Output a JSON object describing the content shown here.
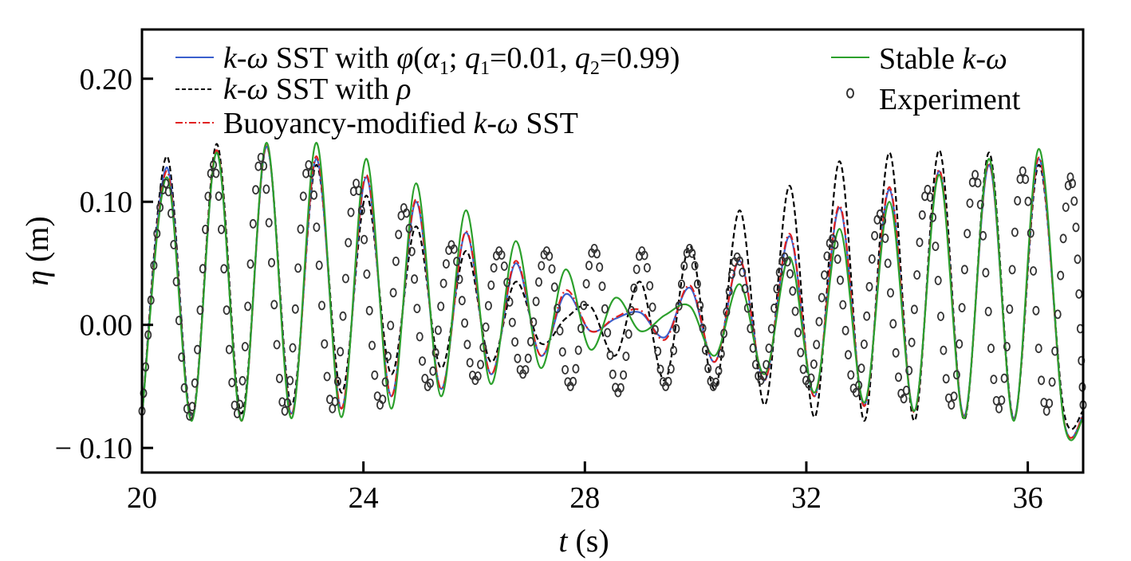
{
  "chart_data": {
    "type": "line",
    "title": "",
    "xlabel": "t (s)",
    "ylabel": "η (m)",
    "xlabel_parts": {
      "sym": "t",
      "unit": "(s)"
    },
    "ylabel_parts": {
      "sym": "η",
      "unit": "(m)"
    },
    "xlim": [
      20,
      37
    ],
    "ylim": [
      -0.12,
      0.24
    ],
    "x_ticks": [
      20,
      24,
      28,
      32,
      36
    ],
    "x_tick_labels": [
      "20",
      "24",
      "28",
      "32",
      "36"
    ],
    "y_ticks": [
      -0.1,
      0.0,
      0.1,
      0.2
    ],
    "y_tick_labels": [
      "− 0.10",
      "0.00",
      "0.10",
      "0.20"
    ],
    "grid": false,
    "legend_position": "top",
    "series": [
      {
        "name": "k-ω SST with φ(α1; q1=0.01, q2=0.99)",
        "style": "solid",
        "color": "#3a5fcd",
        "x": [
          20.0,
          20.45,
          20.9,
          21.35,
          21.8,
          22.25,
          22.7,
          23.15,
          23.6,
          24.05,
          24.5,
          24.95,
          25.4,
          25.85,
          26.3,
          26.75,
          27.2,
          27.65,
          28.1,
          28.55,
          29.0,
          29.45,
          29.9,
          30.35,
          30.8,
          31.25,
          31.7,
          32.15,
          32.6,
          33.05,
          33.5,
          33.95,
          34.4,
          34.85,
          35.3,
          35.75,
          36.2,
          36.65,
          37.0
        ],
        "y": [
          -0.074,
          0.128,
          -0.077,
          0.14,
          -0.078,
          0.145,
          -0.072,
          0.135,
          -0.068,
          0.12,
          -0.058,
          0.1,
          -0.052,
          0.075,
          -0.04,
          0.05,
          -0.025,
          0.025,
          -0.005,
          0.005,
          0.01,
          -0.01,
          0.03,
          -0.03,
          0.052,
          -0.045,
          0.072,
          -0.058,
          0.095,
          -0.065,
          0.11,
          -0.07,
          0.125,
          -0.074,
          0.13,
          -0.076,
          0.135,
          -0.077,
          -0.074
        ]
      },
      {
        "name": "k-ω SST with ρ",
        "style": "dashed",
        "color": "#000000",
        "x": [
          20.0,
          20.45,
          20.9,
          21.35,
          21.8,
          22.25,
          22.7,
          23.15,
          23.6,
          24.05,
          24.5,
          24.95,
          25.4,
          25.85,
          26.3,
          26.75,
          27.2,
          27.65,
          28.1,
          28.55,
          29.0,
          29.45,
          29.9,
          30.35,
          30.8,
          31.25,
          31.7,
          32.15,
          32.6,
          33.05,
          33.5,
          33.95,
          34.4,
          34.85,
          35.3,
          35.75,
          36.2,
          36.65,
          37.0
        ],
        "y": [
          -0.074,
          0.137,
          -0.075,
          0.147,
          -0.072,
          0.145,
          -0.065,
          0.13,
          -0.055,
          0.105,
          -0.04,
          0.08,
          -0.035,
          0.06,
          -0.03,
          0.035,
          -0.015,
          0.005,
          0.015,
          -0.025,
          0.035,
          -0.045,
          0.064,
          -0.052,
          0.093,
          -0.065,
          0.113,
          -0.075,
          0.133,
          -0.078,
          0.14,
          -0.078,
          0.142,
          -0.077,
          0.14,
          -0.076,
          0.13,
          -0.07,
          -0.07
        ]
      },
      {
        "name": "Buoyancy-modified k-ω SST",
        "style": "dashdot",
        "color": "#e02020",
        "x": [
          20.0,
          20.45,
          20.9,
          21.35,
          21.8,
          22.25,
          22.7,
          23.15,
          23.6,
          24.05,
          24.5,
          24.95,
          25.4,
          25.85,
          26.3,
          26.75,
          27.2,
          27.65,
          28.1,
          28.55,
          29.0,
          29.45,
          29.9,
          30.35,
          30.8,
          31.25,
          31.7,
          32.15,
          32.6,
          33.05,
          33.5,
          33.95,
          34.4,
          34.85,
          35.3,
          35.75,
          36.2,
          36.65,
          37.0
        ],
        "y": [
          -0.074,
          0.125,
          -0.077,
          0.142,
          -0.078,
          0.146,
          -0.073,
          0.137,
          -0.068,
          0.122,
          -0.058,
          0.102,
          -0.052,
          0.076,
          -0.04,
          0.052,
          -0.025,
          0.028,
          -0.005,
          0.006,
          0.012,
          -0.012,
          0.032,
          -0.03,
          0.053,
          -0.045,
          0.074,
          -0.058,
          0.097,
          -0.066,
          0.112,
          -0.071,
          0.126,
          -0.075,
          0.132,
          -0.077,
          0.136,
          -0.077,
          -0.074
        ]
      },
      {
        "name": "Stable k-ω",
        "style": "solid",
        "color": "#2ca02c",
        "x": [
          20.0,
          20.45,
          20.9,
          21.35,
          21.8,
          22.25,
          22.7,
          23.15,
          23.6,
          24.05,
          24.5,
          24.95,
          25.4,
          25.85,
          26.3,
          26.75,
          27.2,
          27.65,
          28.1,
          28.55,
          29.0,
          29.45,
          29.9,
          30.35,
          30.8,
          31.25,
          31.7,
          32.15,
          32.6,
          33.05,
          33.5,
          33.95,
          34.4,
          34.85,
          35.3,
          35.75,
          36.2,
          36.65,
          37.0
        ],
        "y": [
          -0.074,
          0.12,
          -0.078,
          0.14,
          -0.078,
          0.148,
          -0.076,
          0.148,
          -0.075,
          0.135,
          -0.068,
          0.115,
          -0.058,
          0.093,
          -0.048,
          0.068,
          -0.035,
          0.045,
          -0.02,
          0.022,
          -0.005,
          0.008,
          0.015,
          -0.025,
          0.033,
          -0.04,
          0.055,
          -0.055,
          0.078,
          -0.063,
          0.1,
          -0.07,
          0.122,
          -0.076,
          0.135,
          -0.078,
          0.143,
          -0.078,
          -0.076
        ]
      },
      {
        "name": "Experiment",
        "style": "markers",
        "color": "#000000",
        "x": [
          20.0,
          20.43,
          20.86,
          21.29,
          21.72,
          22.15,
          22.58,
          23.01,
          23.44,
          23.87,
          24.3,
          24.73,
          25.16,
          25.59,
          26.02,
          26.45,
          26.88,
          27.31,
          27.74,
          28.17,
          28.6,
          29.03,
          29.46,
          29.89,
          30.32,
          30.75,
          31.18,
          31.61,
          32.04,
          32.47,
          32.9,
          33.33,
          33.76,
          34.19,
          34.62,
          35.05,
          35.48,
          35.91,
          36.34,
          36.77,
          37.0
        ],
        "y": [
          -0.07,
          0.115,
          -0.074,
          0.13,
          -0.072,
          0.136,
          -0.07,
          0.13,
          -0.068,
          0.115,
          -0.065,
          0.095,
          -0.05,
          0.065,
          -0.045,
          0.06,
          -0.04,
          0.06,
          -0.05,
          0.062,
          -0.055,
          0.06,
          -0.05,
          0.062,
          -0.05,
          0.055,
          -0.045,
          0.055,
          -0.048,
          0.07,
          -0.055,
          0.09,
          -0.06,
          0.11,
          -0.065,
          0.122,
          -0.068,
          0.125,
          -0.07,
          0.12,
          -0.065
        ]
      }
    ]
  }
}
